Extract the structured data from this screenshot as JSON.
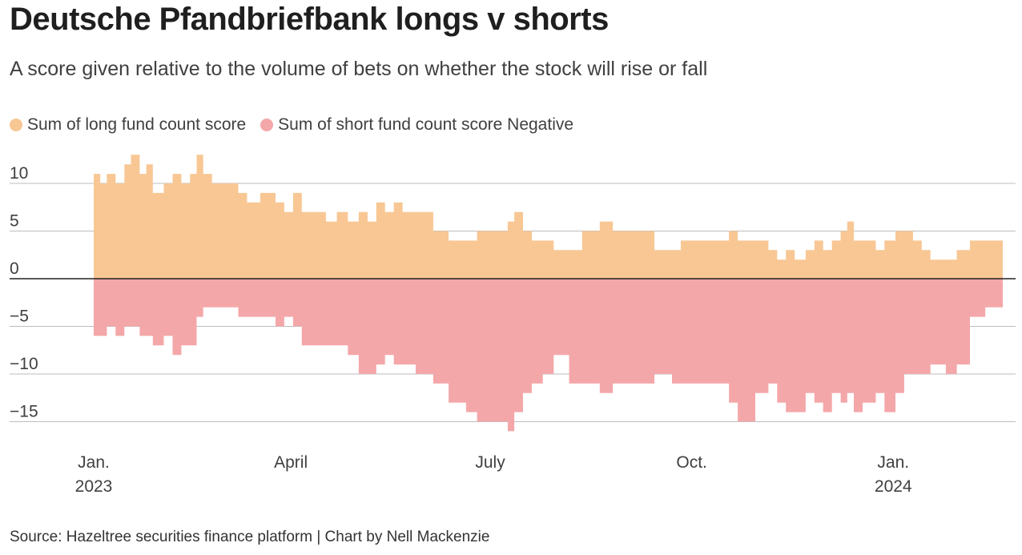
{
  "title": "Deutsche Pfandbriefbank longs v shorts",
  "subtitle": "A score given relative to the volume of bets on whether the stock will rise or fall",
  "source": "Source: Hazeltree securities finance platform | Chart by Nell Mackenzie",
  "colors": {
    "long": "#f8c794",
    "short": "#f4a7a9",
    "grid": "#bdbdbd",
    "zero": "#222222",
    "tick_text": "#404040"
  },
  "chart_data": {
    "type": "area",
    "title": "Deutsche Pfandbriefbank longs v shorts",
    "subtitle": "A score given relative to the volume of bets on whether the stock will rise or fall",
    "xlabel": "",
    "ylabel": "",
    "ylim": [
      -17,
      12
    ],
    "y_ticks": [
      10,
      5,
      0,
      -5,
      -10,
      -15
    ],
    "y_tick_labels": [
      "10",
      "5",
      "0",
      "−5",
      "−10",
      "−15"
    ],
    "x_range": [
      "2023-01-01",
      "2024-02-20"
    ],
    "x_ticks": [
      {
        "date": "2023-01-01",
        "line1": "Jan.",
        "line2": "2023"
      },
      {
        "date": "2023-04-01",
        "line1": "April",
        "line2": ""
      },
      {
        "date": "2023-07-01",
        "line1": "July",
        "line2": ""
      },
      {
        "date": "2023-10-01",
        "line1": "Oct.",
        "line2": ""
      },
      {
        "date": "2024-01-01",
        "line1": "Jan.",
        "line2": "2024"
      }
    ],
    "grid": true,
    "legend_position": "top-left",
    "series": [
      {
        "name": "Sum of long fund count score",
        "color": "#f8c794",
        "points": [
          [
            "2023-01-01",
            11
          ],
          [
            "2023-01-04",
            10
          ],
          [
            "2023-01-07",
            11
          ],
          [
            "2023-01-11",
            10
          ],
          [
            "2023-01-15",
            12
          ],
          [
            "2023-01-18",
            13
          ],
          [
            "2023-01-22",
            11
          ],
          [
            "2023-01-25",
            12
          ],
          [
            "2023-01-28",
            9
          ],
          [
            "2023-02-02",
            10
          ],
          [
            "2023-02-06",
            11
          ],
          [
            "2023-02-10",
            10
          ],
          [
            "2023-02-14",
            11
          ],
          [
            "2023-02-17",
            13
          ],
          [
            "2023-02-20",
            11
          ],
          [
            "2023-02-24",
            10
          ],
          [
            "2023-03-03",
            10
          ],
          [
            "2023-03-08",
            9
          ],
          [
            "2023-03-12",
            8
          ],
          [
            "2023-03-18",
            9
          ],
          [
            "2023-03-25",
            8
          ],
          [
            "2023-03-29",
            7
          ],
          [
            "2023-04-02",
            9
          ],
          [
            "2023-04-06",
            7
          ],
          [
            "2023-04-12",
            7
          ],
          [
            "2023-04-17",
            6
          ],
          [
            "2023-04-22",
            7
          ],
          [
            "2023-04-27",
            6
          ],
          [
            "2023-05-02",
            7
          ],
          [
            "2023-05-06",
            6
          ],
          [
            "2023-05-10",
            8
          ],
          [
            "2023-05-14",
            7
          ],
          [
            "2023-05-18",
            8
          ],
          [
            "2023-05-22",
            7
          ],
          [
            "2023-05-28",
            7
          ],
          [
            "2023-06-05",
            5
          ],
          [
            "2023-06-12",
            4
          ],
          [
            "2023-06-20",
            4
          ],
          [
            "2023-06-25",
            5
          ],
          [
            "2023-07-05",
            5
          ],
          [
            "2023-07-09",
            6
          ],
          [
            "2023-07-12",
            7
          ],
          [
            "2023-07-16",
            5
          ],
          [
            "2023-07-20",
            4
          ],
          [
            "2023-07-25",
            4
          ],
          [
            "2023-07-30",
            3
          ],
          [
            "2023-08-06",
            3
          ],
          [
            "2023-08-12",
            5
          ],
          [
            "2023-08-20",
            6
          ],
          [
            "2023-08-26",
            5
          ],
          [
            "2023-09-02",
            5
          ],
          [
            "2023-09-10",
            5
          ],
          [
            "2023-09-14",
            3
          ],
          [
            "2023-09-22",
            3
          ],
          [
            "2023-09-26",
            4
          ],
          [
            "2023-10-06",
            4
          ],
          [
            "2023-10-12",
            4
          ],
          [
            "2023-10-18",
            5
          ],
          [
            "2023-10-22",
            4
          ],
          [
            "2023-10-30",
            4
          ],
          [
            "2023-11-05",
            3
          ],
          [
            "2023-11-09",
            2
          ],
          [
            "2023-11-13",
            3
          ],
          [
            "2023-11-17",
            2
          ],
          [
            "2023-11-22",
            3
          ],
          [
            "2023-11-26",
            4
          ],
          [
            "2023-11-30",
            3
          ],
          [
            "2023-12-04",
            4
          ],
          [
            "2023-12-08",
            5
          ],
          [
            "2023-12-11",
            6
          ],
          [
            "2023-12-14",
            4
          ],
          [
            "2023-12-18",
            4
          ],
          [
            "2023-12-24",
            3
          ],
          [
            "2023-12-28",
            4
          ],
          [
            "2024-01-02",
            5
          ],
          [
            "2024-01-06",
            5
          ],
          [
            "2024-01-10",
            4
          ],
          [
            "2024-01-14",
            3
          ],
          [
            "2024-01-18",
            2
          ],
          [
            "2024-01-25",
            2
          ],
          [
            "2024-01-30",
            3
          ],
          [
            "2024-02-05",
            4
          ],
          [
            "2024-02-12",
            4
          ]
        ]
      },
      {
        "name": "Sum of short fund count score Negative",
        "color": "#f4a7a9",
        "points": [
          [
            "2023-01-01",
            -6
          ],
          [
            "2023-01-04",
            -6
          ],
          [
            "2023-01-07",
            -5
          ],
          [
            "2023-01-11",
            -6
          ],
          [
            "2023-01-15",
            -5
          ],
          [
            "2023-01-18",
            -5
          ],
          [
            "2023-01-22",
            -6
          ],
          [
            "2023-01-25",
            -6
          ],
          [
            "2023-01-28",
            -7
          ],
          [
            "2023-02-02",
            -6
          ],
          [
            "2023-02-06",
            -8
          ],
          [
            "2023-02-10",
            -7
          ],
          [
            "2023-02-14",
            -7
          ],
          [
            "2023-02-17",
            -4
          ],
          [
            "2023-02-20",
            -3
          ],
          [
            "2023-02-24",
            -3
          ],
          [
            "2023-03-03",
            -3
          ],
          [
            "2023-03-08",
            -4
          ],
          [
            "2023-03-12",
            -4
          ],
          [
            "2023-03-18",
            -4
          ],
          [
            "2023-03-25",
            -5
          ],
          [
            "2023-03-29",
            -4
          ],
          [
            "2023-04-02",
            -5
          ],
          [
            "2023-04-06",
            -7
          ],
          [
            "2023-04-12",
            -7
          ],
          [
            "2023-04-17",
            -7
          ],
          [
            "2023-04-22",
            -7
          ],
          [
            "2023-04-27",
            -8
          ],
          [
            "2023-05-02",
            -10
          ],
          [
            "2023-05-06",
            -10
          ],
          [
            "2023-05-10",
            -9
          ],
          [
            "2023-05-14",
            -8
          ],
          [
            "2023-05-18",
            -9
          ],
          [
            "2023-05-22",
            -9
          ],
          [
            "2023-05-28",
            -10
          ],
          [
            "2023-06-05",
            -11
          ],
          [
            "2023-06-12",
            -13
          ],
          [
            "2023-06-20",
            -14
          ],
          [
            "2023-06-25",
            -15
          ],
          [
            "2023-07-05",
            -15
          ],
          [
            "2023-07-09",
            -16
          ],
          [
            "2023-07-12",
            -14
          ],
          [
            "2023-07-16",
            -12
          ],
          [
            "2023-07-20",
            -11
          ],
          [
            "2023-07-25",
            -10
          ],
          [
            "2023-07-30",
            -8
          ],
          [
            "2023-08-06",
            -11
          ],
          [
            "2023-08-12",
            -11
          ],
          [
            "2023-08-20",
            -12
          ],
          [
            "2023-08-26",
            -11
          ],
          [
            "2023-09-02",
            -11
          ],
          [
            "2023-09-10",
            -11
          ],
          [
            "2023-09-14",
            -10
          ],
          [
            "2023-09-22",
            -11
          ],
          [
            "2023-09-26",
            -11
          ],
          [
            "2023-10-06",
            -11
          ],
          [
            "2023-10-12",
            -11
          ],
          [
            "2023-10-18",
            -13
          ],
          [
            "2023-10-22",
            -15
          ],
          [
            "2023-10-30",
            -12
          ],
          [
            "2023-11-05",
            -11
          ],
          [
            "2023-11-09",
            -13
          ],
          [
            "2023-11-13",
            -14
          ],
          [
            "2023-11-17",
            -14
          ],
          [
            "2023-11-22",
            -12
          ],
          [
            "2023-11-26",
            -13
          ],
          [
            "2023-11-30",
            -14
          ],
          [
            "2023-12-04",
            -12
          ],
          [
            "2023-12-08",
            -13
          ],
          [
            "2023-12-11",
            -12
          ],
          [
            "2023-12-14",
            -14
          ],
          [
            "2023-12-18",
            -13
          ],
          [
            "2023-12-24",
            -12
          ],
          [
            "2023-12-28",
            -14
          ],
          [
            "2024-01-02",
            -12
          ],
          [
            "2024-01-06",
            -10
          ],
          [
            "2024-01-10",
            -10
          ],
          [
            "2024-01-14",
            -10
          ],
          [
            "2024-01-18",
            -9
          ],
          [
            "2024-01-25",
            -10
          ],
          [
            "2024-01-30",
            -9
          ],
          [
            "2024-02-05",
            -4
          ],
          [
            "2024-02-12",
            -3
          ]
        ]
      }
    ]
  }
}
